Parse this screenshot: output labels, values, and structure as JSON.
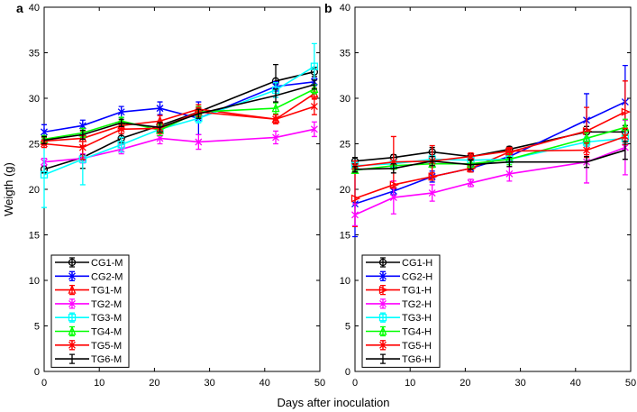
{
  "chart_data": [
    {
      "type": "line",
      "panel_label": "a",
      "xlabel": "Days after inoculation",
      "ylabel": "Weigth (g)",
      "xlim": [
        0,
        50
      ],
      "ylim": [
        0,
        40
      ],
      "xticks": [
        0,
        10,
        20,
        30,
        40,
        50
      ],
      "yticks": [
        0,
        5,
        10,
        15,
        20,
        25,
        30,
        35,
        40
      ],
      "legend_position": "bottom-left",
      "x": [
        0,
        7,
        14,
        21,
        28,
        42,
        49
      ],
      "series": [
        {
          "name": "CG1-M",
          "color": "#000000",
          "marker": "circle",
          "values": [
            22.2,
            23.5,
            25.6,
            27.0,
            28.5,
            31.9,
            32.9
          ],
          "err": [
            0.4,
            1.2,
            0.5,
            0.4,
            0.5,
            1.8,
            0.5
          ]
        },
        {
          "name": "CG2-M",
          "color": "#0000ff",
          "marker": "star",
          "values": [
            26.3,
            27.0,
            28.5,
            28.9,
            27.8,
            31.3,
            31.8
          ],
          "err": [
            0.8,
            0.6,
            0.6,
            0.7,
            1.8,
            0.5,
            0.4
          ]
        },
        {
          "name": "TG1-M",
          "color": "#ff0000",
          "marker": "triangle",
          "values": [
            25.3,
            25.6,
            27.0,
            27.5,
            28.8,
            27.7,
            30.5
          ],
          "err": [
            0.4,
            0.8,
            0.5,
            0.6,
            0.5,
            0.5,
            0.6
          ]
        },
        {
          "name": "TG2-M",
          "color": "#ff00ff",
          "marker": "x",
          "values": [
            23.0,
            23.4,
            24.4,
            25.6,
            25.2,
            25.7,
            26.6
          ],
          "err": [
            0.4,
            0.5,
            0.5,
            0.6,
            0.8,
            0.7,
            0.8
          ]
        },
        {
          "name": "TG3-M",
          "color": "#00ffff",
          "marker": "square",
          "values": [
            21.6,
            23.3,
            24.9,
            26.6,
            27.8,
            30.9,
            33.5
          ],
          "err": [
            3.6,
            2.8,
            0.8,
            0.5,
            0.5,
            0.8,
            2.5
          ]
        },
        {
          "name": "TG4-M",
          "color": "#00ff00",
          "marker": "triangle",
          "values": [
            25.5,
            26.2,
            27.5,
            26.5,
            28.5,
            28.9,
            31.0
          ],
          "err": [
            0.4,
            0.5,
            0.4,
            0.6,
            0.6,
            0.6,
            0.5
          ]
        },
        {
          "name": "TG5-M",
          "color": "#ff0000",
          "marker": "star",
          "values": [
            25.0,
            24.6,
            26.6,
            26.7,
            28.5,
            27.7,
            29.1
          ],
          "err": [
            0.4,
            1.3,
            0.5,
            0.6,
            0.5,
            0.5,
            0.9
          ]
        },
        {
          "name": "TG6-M",
          "color": "#000000",
          "marker": "none",
          "values": [
            25.4,
            26.0,
            27.3,
            26.8,
            28.3,
            30.3,
            31.5
          ],
          "err": [
            0.4,
            0.5,
            0.4,
            0.5,
            0.5,
            0.7,
            0.5
          ]
        }
      ]
    },
    {
      "type": "line",
      "panel_label": "b",
      "xlim": [
        0,
        50
      ],
      "ylim": [
        0,
        40
      ],
      "xticks": [
        0,
        10,
        20,
        30,
        40,
        50
      ],
      "yticks": [
        0,
        5,
        10,
        15,
        20,
        25,
        30,
        35,
        40
      ],
      "legend_position": "bottom-left",
      "x": [
        0,
        7,
        14,
        21,
        28,
        42,
        49
      ],
      "series": [
        {
          "name": "CG1-H",
          "color": "#000000",
          "marker": "circle",
          "values": [
            23.1,
            23.5,
            24.1,
            23.6,
            24.4,
            26.3,
            26.3
          ],
          "err": [
            0.4,
            0.3,
            0.5,
            0.3,
            0.3,
            0.6,
            0.7
          ]
        },
        {
          "name": "CG2-H",
          "color": "#0000ff",
          "marker": "star",
          "values": [
            18.4,
            19.8,
            21.4,
            22.3,
            23.6,
            27.6,
            29.6
          ],
          "err": [
            3.6,
            0.4,
            0.6,
            0.4,
            0.4,
            2.9,
            4.0
          ]
        },
        {
          "name": "TG1-H",
          "color": "#ff0000",
          "marker": "triangle-right",
          "values": [
            19.0,
            20.5,
            21.4,
            22.3,
            24.1,
            26.4,
            28.5
          ],
          "err": [
            3.1,
            0.4,
            0.4,
            0.4,
            0.4,
            2.6,
            3.4
          ]
        },
        {
          "name": "TG2-H",
          "color": "#ff00ff",
          "marker": "x",
          "values": [
            17.2,
            19.1,
            19.6,
            20.7,
            21.7,
            23.0,
            24.6
          ],
          "err": [
            1.2,
            1.8,
            0.9,
            0.4,
            0.8,
            2.3,
            3.0
          ]
        },
        {
          "name": "TG3-H",
          "color": "#00ffff",
          "marker": "square",
          "values": [
            22.6,
            22.8,
            23.3,
            23.2,
            23.3,
            25.2,
            25.6
          ],
          "err": [
            0.4,
            0.4,
            0.4,
            0.3,
            0.4,
            0.5,
            0.6
          ]
        },
        {
          "name": "TG4-H",
          "color": "#00ff00",
          "marker": "triangle",
          "values": [
            22.1,
            22.6,
            22.8,
            22.8,
            23.3,
            25.6,
            26.8
          ],
          "err": [
            0.3,
            0.4,
            0.4,
            0.4,
            0.6,
            0.6,
            0.9
          ]
        },
        {
          "name": "TG5-H",
          "color": "#ff0000",
          "marker": "star",
          "values": [
            22.5,
            23.0,
            23.1,
            23.6,
            24.2,
            24.3,
            25.8
          ],
          "err": [
            0.6,
            2.8,
            1.7,
            0.4,
            0.4,
            0.8,
            0.9
          ]
        },
        {
          "name": "TG6-H",
          "color": "#000000",
          "marker": "none",
          "values": [
            22.2,
            22.3,
            23.1,
            22.7,
            23.0,
            23.0,
            24.3
          ],
          "err": [
            0.3,
            0.5,
            0.5,
            0.5,
            0.5,
            0.6,
            1.0
          ]
        }
      ]
    }
  ]
}
